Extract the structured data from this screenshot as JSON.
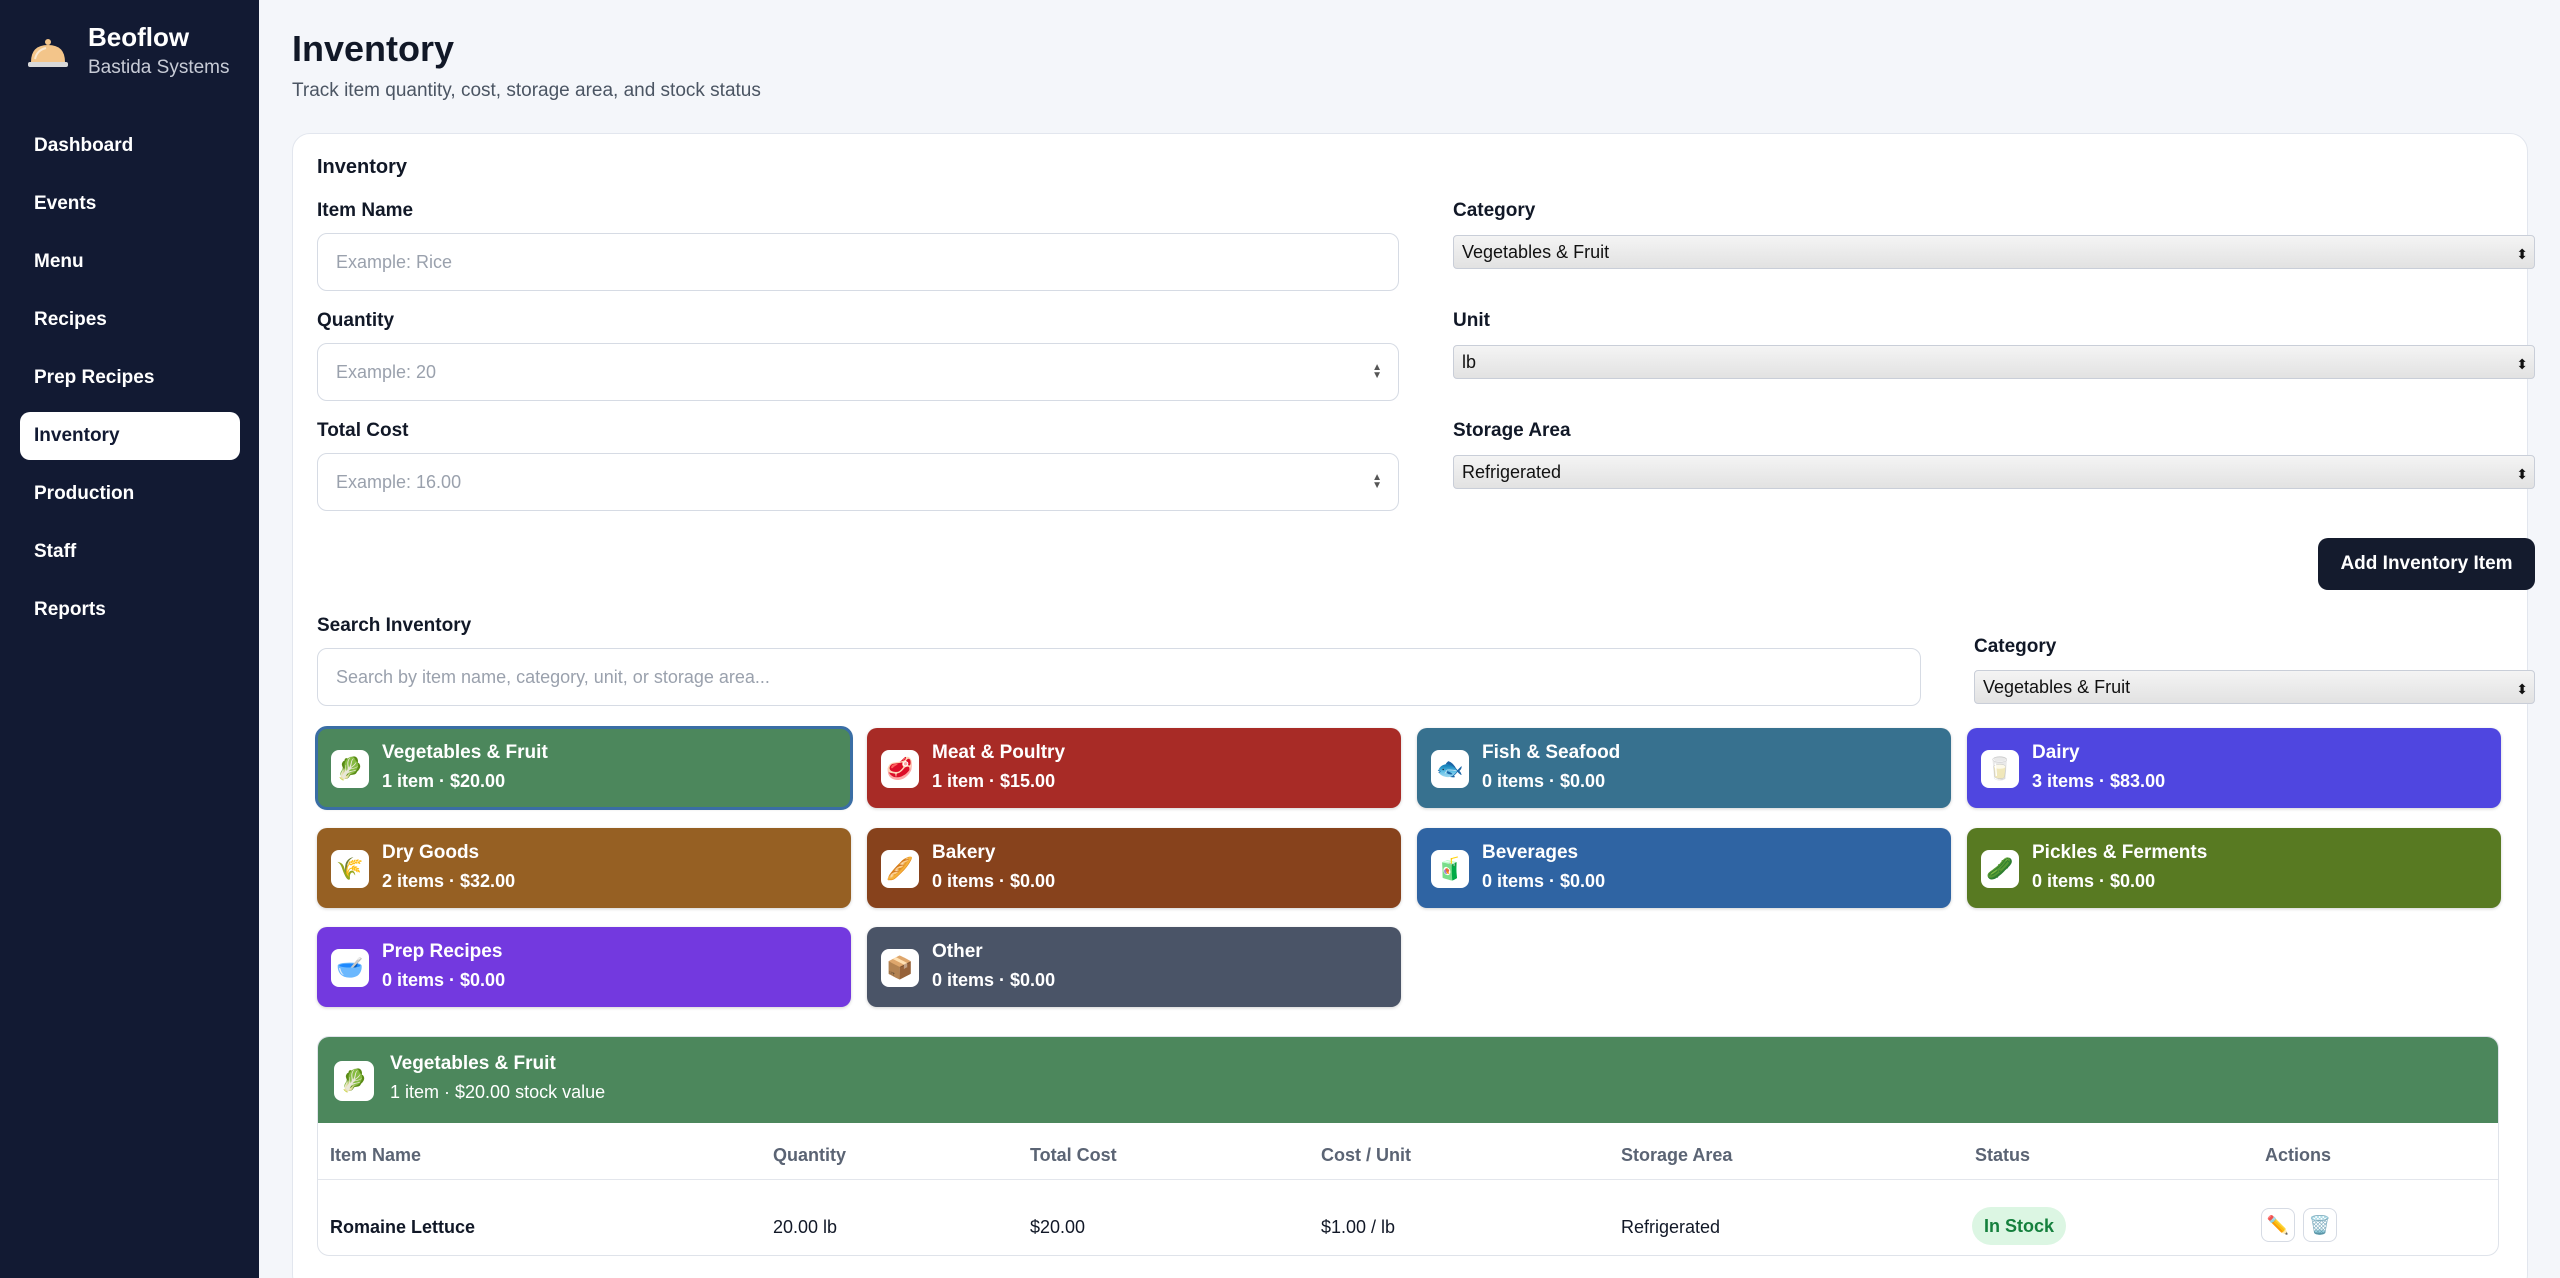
{
  "brand": {
    "name": "Beoflow",
    "subtitle": "Bastida Systems",
    "icon": "cloche-icon"
  },
  "nav": [
    "Dashboard",
    "Events",
    "Menu",
    "Recipes",
    "Prep Recipes",
    "Inventory",
    "Production",
    "Staff",
    "Reports"
  ],
  "nav_active": "Inventory",
  "page": {
    "title": "Inventory",
    "subtitle": "Track item quantity, cost, storage area, and stock status"
  },
  "form": {
    "title": "Inventory",
    "item_name_label": "Item Name",
    "item_name_placeholder": "Example: Rice",
    "category_label": "Category",
    "category_value": "Vegetables & Fruit",
    "quantity_label": "Quantity",
    "quantity_placeholder": "Example: 20",
    "unit_label": "Unit",
    "unit_value": "lb",
    "total_cost_label": "Total Cost",
    "total_cost_placeholder": "Example: 16.00",
    "storage_label": "Storage Area",
    "storage_value": "Refrigerated",
    "add_button": "Add Inventory Item"
  },
  "search": {
    "label": "Search Inventory",
    "placeholder": "Search by item name, category, unit, or storage area...",
    "category_label": "Category",
    "category_value": "Vegetables & Fruit"
  },
  "categories": [
    {
      "name": "Vegetables & Fruit",
      "summary": "1 item · $20.00",
      "color": "#4c875c",
      "icon": "🥬"
    },
    {
      "name": "Meat & Poultry",
      "summary": "1 item · $15.00",
      "color": "#a82b26",
      "icon": "🥩"
    },
    {
      "name": "Fish & Seafood",
      "summary": "0 items · $0.00",
      "color": "#37718f",
      "icon": "🐟"
    },
    {
      "name": "Dairy",
      "summary": "3 items · $83.00",
      "color": "#4f46e0",
      "icon": "🥛"
    },
    {
      "name": "Dry Goods",
      "summary": "2 items · $32.00",
      "color": "#966023",
      "icon": "🌾"
    },
    {
      "name": "Bakery",
      "summary": "0 items · $0.00",
      "color": "#87421c",
      "icon": "🥖"
    },
    {
      "name": "Beverages",
      "summary": "0 items · $0.00",
      "color": "#2f64a3",
      "icon": "🧃"
    },
    {
      "name": "Pickles & Ferments",
      "summary": "0 items · $0.00",
      "color": "#587a22",
      "icon": "🥒"
    },
    {
      "name": "Prep Recipes",
      "summary": "0 items · $0.00",
      "color": "#7339df",
      "icon": "🥣"
    },
    {
      "name": "Other",
      "summary": "0 items · $0.00",
      "color": "#4a5467",
      "icon": "📦"
    }
  ],
  "section": {
    "title": "Vegetables & Fruit",
    "subtitle": "1 item · $20.00 stock value",
    "icon": "🥬",
    "columns": [
      "Item Name",
      "Quantity",
      "Total Cost",
      "Cost / Unit",
      "Storage Area",
      "Status",
      "Actions"
    ],
    "rows": [
      {
        "name": "Romaine Lettuce",
        "quantity": "20.00 lb",
        "total_cost": "$20.00",
        "cost_unit": "$1.00 / lb",
        "storage": "Refrigerated",
        "status": "In Stock"
      }
    ],
    "action_icons": [
      "pencil-icon",
      "trash-icon"
    ]
  }
}
